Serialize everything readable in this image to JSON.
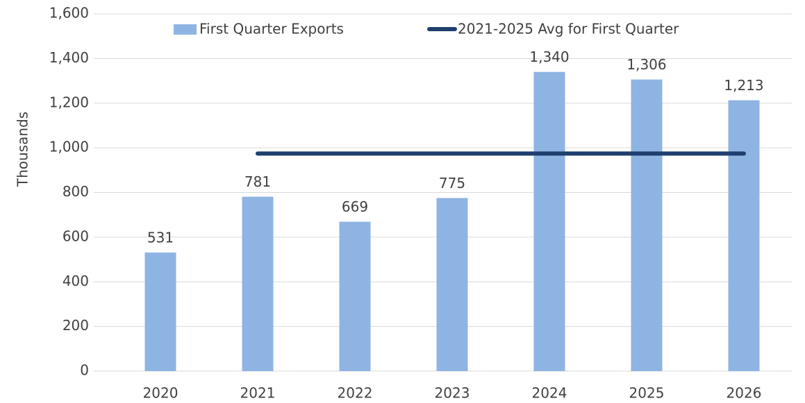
{
  "chart_data": {
    "type": "bar",
    "y_label": "Thousands",
    "categories": [
      "2020",
      "2021",
      "2022",
      "2023",
      "2024",
      "2025",
      "2026"
    ],
    "series": [
      {
        "name": "First Quarter Exports",
        "type": "bar",
        "color": "#8eb4e3",
        "values": [
          531,
          781,
          669,
          775,
          1340,
          1306,
          1213
        ],
        "value_labels": [
          "531",
          "781",
          "669",
          "775",
          "1,340",
          "1,306",
          "1,213"
        ]
      },
      {
        "name": "2021-2025 Avg for First Quarter",
        "type": "line",
        "color": "#1f3f6e",
        "values": [
          null,
          974.2,
          974.2,
          974.2,
          974.2,
          974.2,
          974.2
        ]
      }
    ],
    "ylim": [
      0,
      1600
    ],
    "yticks": [
      0,
      200,
      400,
      600,
      800,
      {
        "value": 1000,
        "label": "1,000"
      },
      {
        "value": 1200,
        "label": "1,200"
      },
      {
        "value": 1400,
        "label": "1,400"
      },
      {
        "value": 1600,
        "label": "1,600"
      }
    ],
    "grid": true,
    "legend": "top"
  }
}
